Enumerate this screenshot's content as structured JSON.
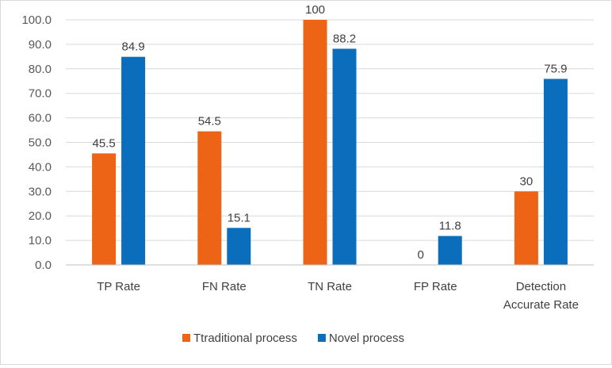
{
  "chart_data": {
    "type": "bar",
    "categories": [
      [
        "TP Rate"
      ],
      [
        "FN Rate"
      ],
      [
        "TN Rate"
      ],
      [
        "FP Rate"
      ],
      [
        "Detection",
        "Accurate Rate"
      ]
    ],
    "series": [
      {
        "name": "Ttraditional process",
        "color": "#ED6417",
        "values": [
          45.5,
          54.5,
          100,
          0,
          30
        ],
        "labels": [
          "45.5",
          "54.5",
          "100",
          "0",
          "30"
        ]
      },
      {
        "name": "Novel process",
        "color": "#0A6EBD",
        "values": [
          84.9,
          15.1,
          88.2,
          11.8,
          75.9
        ],
        "labels": [
          "84.9",
          "15.1",
          "88.2",
          "11.8",
          "75.9"
        ]
      }
    ],
    "y_ticks": [
      "0.0",
      "10.0",
      "20.0",
      "30.0",
      "40.0",
      "50.0",
      "60.0",
      "70.0",
      "80.0",
      "90.0",
      "100.0"
    ],
    "ylim": [
      0,
      100
    ],
    "grid": true,
    "legend_position": "bottom"
  }
}
